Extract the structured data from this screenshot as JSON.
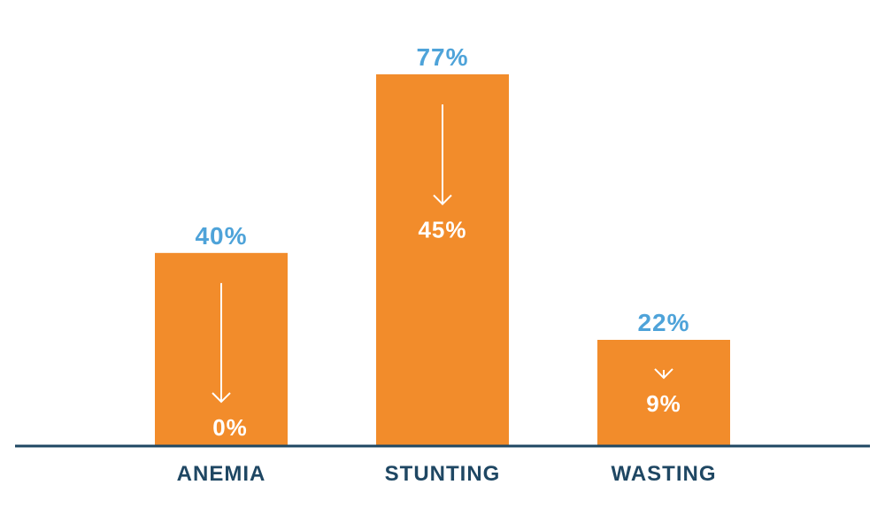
{
  "chart_data": {
    "type": "bar",
    "categories": [
      "ANEMIA",
      "STUNTING",
      "WASTING"
    ],
    "series": [
      {
        "values": [
          40,
          77,
          22
        ]
      },
      {
        "values": [
          0,
          45,
          9
        ]
      }
    ],
    "labels_top": [
      "40%",
      "77%",
      "22%"
    ],
    "labels_inner": [
      "0%",
      "45%",
      "9%"
    ],
    "ylim": [
      0,
      77
    ],
    "grid": false,
    "colors": {
      "bar": "#f28c2b",
      "top_label": "#4ea3d9",
      "inner_label": "#ffffff",
      "axis": "#1f4763",
      "category_label": "#1f4763",
      "arrow": "#ffffff"
    }
  }
}
